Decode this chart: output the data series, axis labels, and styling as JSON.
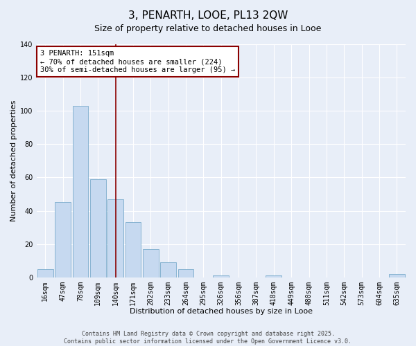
{
  "title": "3, PENARTH, LOOE, PL13 2QW",
  "subtitle": "Size of property relative to detached houses in Looe",
  "xlabel": "Distribution of detached houses by size in Looe",
  "ylabel": "Number of detached properties",
  "categories": [
    "16sqm",
    "47sqm",
    "78sqm",
    "109sqm",
    "140sqm",
    "171sqm",
    "202sqm",
    "233sqm",
    "264sqm",
    "295sqm",
    "326sqm",
    "356sqm",
    "387sqm",
    "418sqm",
    "449sqm",
    "480sqm",
    "511sqm",
    "542sqm",
    "573sqm",
    "604sqm",
    "635sqm"
  ],
  "values": [
    5,
    45,
    103,
    59,
    47,
    33,
    17,
    9,
    5,
    0,
    1,
    0,
    0,
    1,
    0,
    0,
    0,
    0,
    0,
    0,
    2
  ],
  "bar_color": "#c6d9f0",
  "bar_edge_color": "#7aaccc",
  "vline_x_index": 4,
  "vline_color": "#8b0000",
  "ylim": [
    0,
    140
  ],
  "yticks": [
    0,
    20,
    40,
    60,
    80,
    100,
    120,
    140
  ],
  "annotation_text": "3 PENARTH: 151sqm\n← 70% of detached houses are smaller (224)\n30% of semi-detached houses are larger (95) →",
  "annotation_box_color": "#8b0000",
  "annotation_fill": "white",
  "footer_line1": "Contains HM Land Registry data © Crown copyright and database right 2025.",
  "footer_line2": "Contains public sector information licensed under the Open Government Licence v3.0.",
  "background_color": "#e8eef8",
  "grid_color": "#ffffff",
  "title_fontsize": 11,
  "axis_label_fontsize": 8,
  "tick_fontsize": 7,
  "annotation_fontsize": 7.5,
  "footer_fontsize": 6
}
